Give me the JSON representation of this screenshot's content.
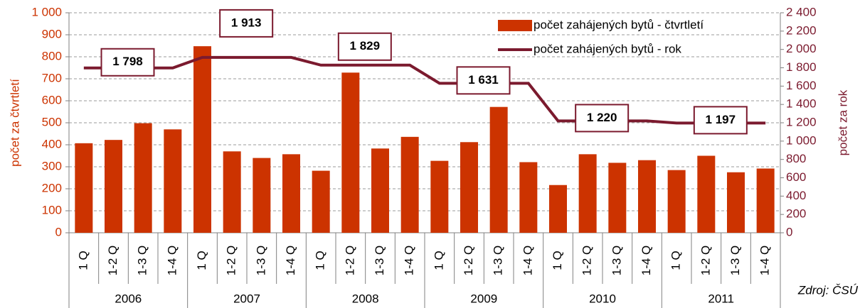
{
  "chart_data": {
    "type": "bar_line",
    "y_label": "počet za čtvrtletí",
    "y2_label": "počet za rok",
    "source": "Zdroj: ČSÚ",
    "categories": [
      "1 Q",
      "1-2 Q",
      "1-3 Q",
      "1-4 Q",
      "1 Q",
      "1-2 Q",
      "1-3 Q",
      "1-4 Q",
      "1 Q",
      "1-2 Q",
      "1-3 Q",
      "1-4 Q",
      "1 Q",
      "1-2 Q",
      "1-3 Q",
      "1-4 Q",
      "1 Q",
      "1-2 Q",
      "1-3 Q",
      "1-4 Q",
      "1 Q",
      "1-2 Q",
      "1-3 Q",
      "1-4 Q"
    ],
    "years": [
      "2006",
      "2007",
      "2008",
      "2009",
      "2010",
      "2011"
    ],
    "series": [
      {
        "name": "počet zahájených bytů - čtvrtletí",
        "color": "#cc3300",
        "type": "bar",
        "values": [
          407,
          422,
          498,
          470,
          848,
          370,
          340,
          357,
          282,
          728,
          383,
          436,
          327,
          412,
          572,
          321,
          217,
          357,
          318,
          330,
          285,
          350,
          275,
          292
        ]
      },
      {
        "name": "počet zahájených bytů - rok",
        "color": "#7b1a2e",
        "type": "line",
        "axis": "y2",
        "values": [
          1798,
          1798,
          1798,
          1798,
          1913,
          1913,
          1913,
          1913,
          1829,
          1829,
          1829,
          1829,
          1631,
          1631,
          1631,
          1631,
          1220,
          1220,
          1220,
          1220,
          1197,
          1197,
          1197,
          1197
        ],
        "value_labels": [
          null,
          "1 798",
          null,
          null,
          null,
          "1 913",
          null,
          null,
          null,
          "1 829",
          null,
          null,
          null,
          "1 631",
          null,
          null,
          null,
          "1 220",
          null,
          null,
          null,
          "1 197",
          null,
          null
        ]
      }
    ],
    "ylim": [
      0,
      1000
    ],
    "yticks": [
      0,
      100,
      200,
      300,
      400,
      500,
      600,
      700,
      800,
      900,
      {
        "value": 1000,
        "label": "1 000"
      }
    ],
    "y2lim": [
      0,
      2400
    ],
    "y2ticks": [
      0,
      200,
      400,
      600,
      800,
      {
        "value": 1000,
        "label": "1 000"
      },
      {
        "value": 1200,
        "label": "1 200"
      },
      {
        "value": 1400,
        "label": "1 400"
      },
      {
        "value": 1600,
        "label": "1 600"
      },
      {
        "value": 1800,
        "label": "1 800"
      },
      {
        "value": 2000,
        "label": "2 000"
      },
      {
        "value": 2200,
        "label": "2 200"
      },
      {
        "value": 2400,
        "label": "2 400"
      }
    ],
    "grid": true,
    "legend": "top-right"
  }
}
